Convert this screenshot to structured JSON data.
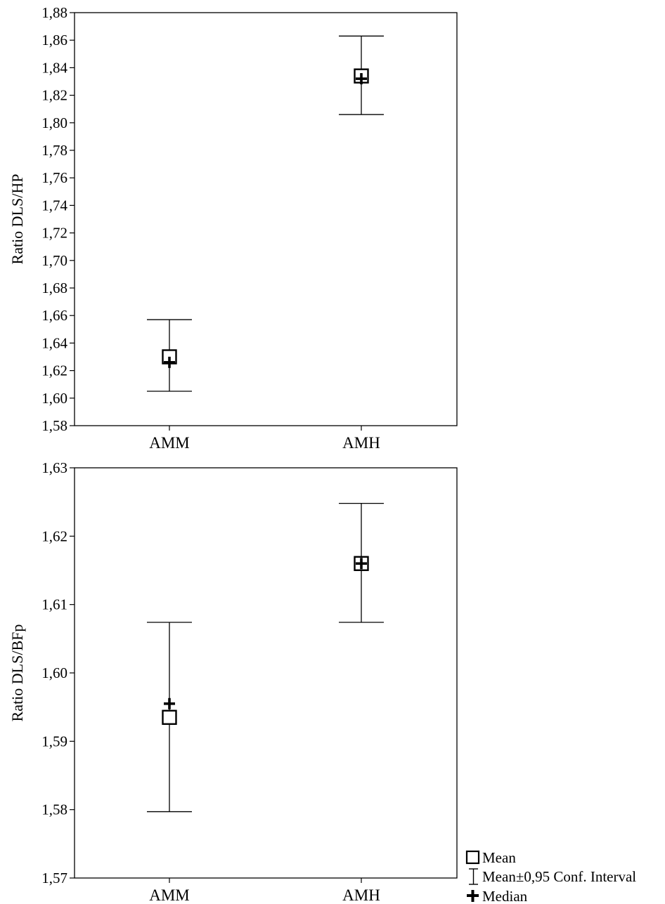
{
  "chart_data": [
    {
      "type": "errorbar",
      "title": "",
      "xlabel": "",
      "ylabel": "Ratio DLS/HP",
      "ylim": [
        1.58,
        1.88
      ],
      "yticks": [
        "1,58",
        "1,60",
        "1,62",
        "1,64",
        "1,66",
        "1,68",
        "1,70",
        "1,72",
        "1,74",
        "1,76",
        "1,78",
        "1,80",
        "1,82",
        "1,84",
        "1,86",
        "1,88"
      ],
      "ytick_values": [
        1.58,
        1.6,
        1.62,
        1.64,
        1.66,
        1.68,
        1.7,
        1.72,
        1.74,
        1.76,
        1.78,
        1.8,
        1.82,
        1.84,
        1.86,
        1.88
      ],
      "categories": [
        "AMM",
        "AMH"
      ],
      "mean": [
        1.63,
        1.834
      ],
      "median": [
        1.626,
        1.832
      ],
      "ci_low": [
        1.605,
        1.806
      ],
      "ci_high": [
        1.657,
        1.863
      ],
      "grid": false
    },
    {
      "type": "errorbar",
      "title": "",
      "xlabel": "",
      "ylabel": "Ratio DLS/BFp",
      "ylim": [
        1.57,
        1.63
      ],
      "yticks": [
        "1,57",
        "1,58",
        "1,59",
        "1,60",
        "1,61",
        "1,62",
        "1,63"
      ],
      "ytick_values": [
        1.57,
        1.58,
        1.59,
        1.6,
        1.61,
        1.62,
        1.63
      ],
      "categories": [
        "AMM",
        "AMH"
      ],
      "mean": [
        1.5935,
        1.616
      ],
      "median": [
        1.5955,
        1.616
      ],
      "ci_low": [
        1.5797,
        1.6074
      ],
      "ci_high": [
        1.6074,
        1.6248
      ],
      "grid": false
    }
  ],
  "legend": {
    "placement": "bottom-right",
    "items": [
      {
        "marker": "square",
        "label": "Mean"
      },
      {
        "marker": "errorbar",
        "label": "Mean±0,95 Conf. Interval"
      },
      {
        "marker": "plus",
        "label": "Median"
      }
    ]
  }
}
